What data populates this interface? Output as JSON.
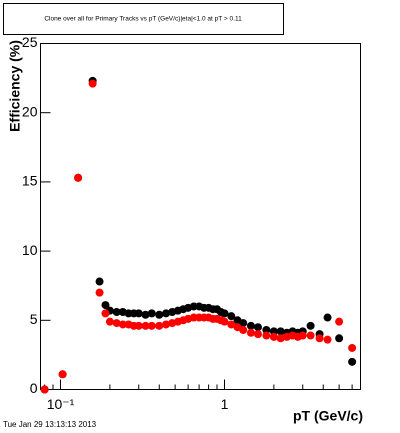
{
  "chart_data": {
    "type": "scatter",
    "title": "Clone  over all for Primary Tracks vs pT (GeV/c)|eta|<1.0 at pT > 0.11",
    "xlabel": "pT (GeV/c)",
    "ylabel": "Efficiency (%)",
    "footer": "Tue Jan 29 13:13:13 2013",
    "xscale": "log",
    "xlim": [
      0.0755,
      6.75
    ],
    "ylim": [
      0,
      25
    ],
    "xticks": [
      {
        "value": 0.1,
        "label": "10⁻¹"
      },
      1
    ],
    "xminorticks": [
      0.08,
      0.09,
      0.2,
      0.3,
      0.4,
      0.5,
      0.6,
      0.7,
      0.8,
      0.9,
      2,
      3,
      4,
      5,
      6
    ],
    "yticks": [
      0,
      5,
      10,
      15,
      20,
      25
    ],
    "grid": false,
    "x": [
      0.08,
      0.103,
      0.128,
      0.157,
      0.173,
      0.188,
      0.2,
      0.22,
      0.24,
      0.26,
      0.28,
      0.3,
      0.33,
      0.36,
      0.4,
      0.44,
      0.48,
      0.52,
      0.56,
      0.6,
      0.65,
      0.7,
      0.75,
      0.8,
      0.85,
      0.9,
      0.95,
      1.0,
      1.1,
      1.2,
      1.3,
      1.45,
      1.6,
      1.8,
      2.0,
      2.2,
      2.4,
      2.6,
      2.8,
      3.0,
      3.35,
      3.8,
      4.25,
      5.0,
      6.0
    ],
    "series": [
      {
        "color": "#000000",
        "values": [
          0,
          1.1,
          15.3,
          22.3,
          7.8,
          6.1,
          5.7,
          5.6,
          5.6,
          5.5,
          5.5,
          5.5,
          5.4,
          5.5,
          5.4,
          5.5,
          5.6,
          5.7,
          5.8,
          5.9,
          6.0,
          6.0,
          5.9,
          5.9,
          5.8,
          5.8,
          5.6,
          5.5,
          5.3,
          5.0,
          4.8,
          4.6,
          4.5,
          4.3,
          4.2,
          4.2,
          4.1,
          4.2,
          4.1,
          4.2,
          4.6,
          4.0,
          5.2,
          3.7,
          2.0
        ]
      },
      {
        "color": "#ff0000",
        "values": [
          0,
          1.1,
          15.3,
          22.1,
          7.0,
          5.5,
          4.9,
          4.8,
          4.7,
          4.7,
          4.6,
          4.6,
          4.6,
          4.6,
          4.6,
          4.7,
          4.8,
          4.9,
          5.0,
          5.1,
          5.2,
          5.2,
          5.2,
          5.2,
          5.1,
          5.1,
          5.0,
          4.9,
          4.7,
          4.5,
          4.3,
          4.1,
          4.0,
          3.9,
          3.8,
          3.7,
          3.8,
          3.9,
          3.8,
          3.9,
          3.9,
          3.7,
          3.6,
          4.9,
          3.0
        ]
      }
    ]
  }
}
